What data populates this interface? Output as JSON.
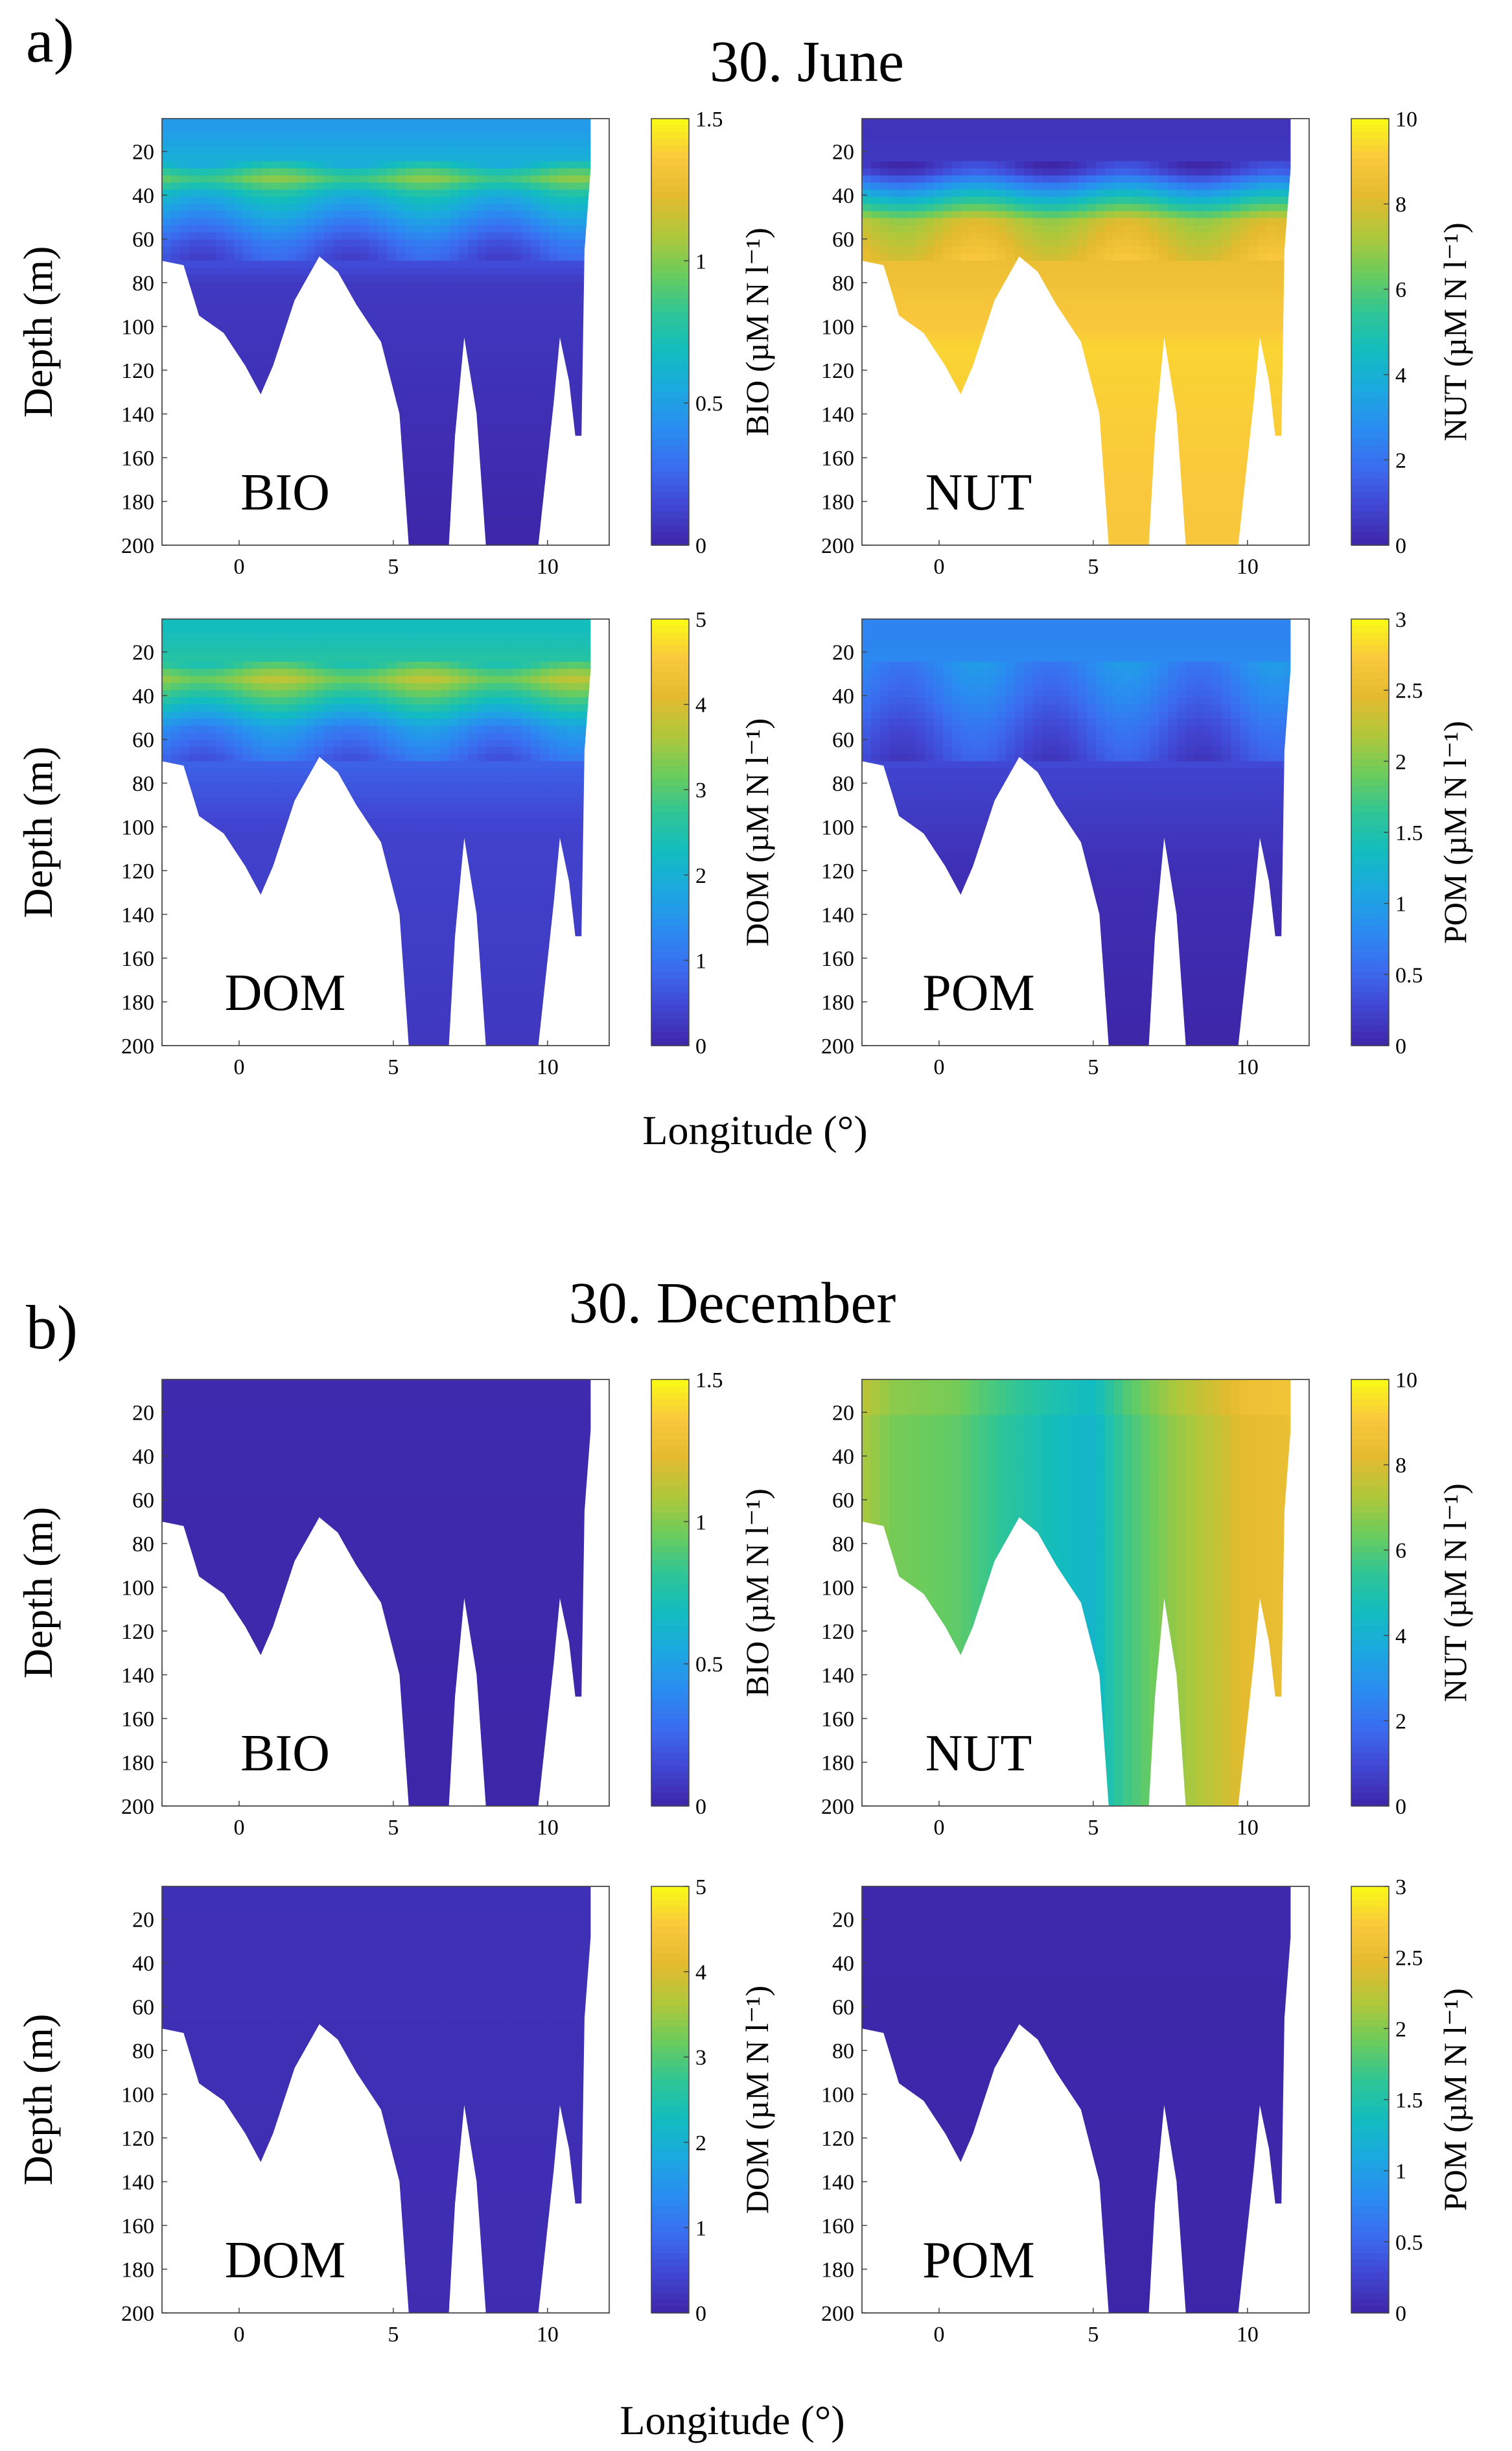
{
  "colors": {
    "parula": [
      "#3e26a8",
      "#4146d2",
      "#3b6cf0",
      "#2a8cf0",
      "#1ca8e0",
      "#12bcbf",
      "#30c596",
      "#6ccc5c",
      "#b1c73a",
      "#e4ba2f",
      "#fac83c",
      "#f9fb15"
    ],
    "axis": "#444444",
    "background": "#ffffff"
  },
  "chart_data": [
    {
      "type": "heatmap",
      "section_label": "a)",
      "title": "30. June",
      "xlabel": "Longitude (°)",
      "panels": [
        {
          "id": "june-bio",
          "label": "BIO",
          "ylabel": "Depth (m)",
          "colorbar_label": "BIO (µM N l⁻¹)",
          "clim": [
            0,
            1.5
          ],
          "cb_ticks": [
            "0",
            "0.5",
            "1",
            "1.5"
          ],
          "cb_tick_values": [
            0,
            0.5,
            1,
            1.5
          ],
          "xlim": [
            -2.5,
            12
          ],
          "ylim": [
            200,
            5
          ],
          "xticks": [
            "0",
            "5",
            "10"
          ],
          "xtick_values": [
            0,
            5,
            10
          ],
          "yticks": [
            "20",
            "40",
            "60",
            "80",
            "100",
            "120",
            "140",
            "160",
            "180",
            "200"
          ],
          "ytick_values": [
            20,
            40,
            60,
            80,
            100,
            120,
            140,
            160,
            180,
            200
          ],
          "depth_profile": [
            {
              "depth": 10,
              "value": 0.48
            },
            {
              "depth": 25,
              "value": 0.6
            },
            {
              "depth": 32,
              "value": 0.95
            },
            {
              "depth": 40,
              "value": 0.65
            },
            {
              "depth": 52,
              "value": 0.42
            },
            {
              "depth": 62,
              "value": 0.25
            },
            {
              "depth": 80,
              "value": 0.08
            },
            {
              "depth": 200,
              "value": 0.0
            }
          ]
        },
        {
          "id": "june-nut",
          "label": "NUT",
          "ylabel": "",
          "colorbar_label": "NUT (µM N l⁻¹)",
          "clim": [
            0,
            10
          ],
          "cb_ticks": [
            "0",
            "2",
            "4",
            "6",
            "8",
            "10"
          ],
          "cb_tick_values": [
            0,
            2,
            4,
            6,
            8,
            10
          ],
          "xlim": [
            -2.5,
            12
          ],
          "ylim": [
            200,
            5
          ],
          "xticks": [
            "0",
            "5",
            "10"
          ],
          "xtick_values": [
            0,
            5,
            10
          ],
          "yticks": [
            "20",
            "40",
            "60",
            "80",
            "100",
            "120",
            "140",
            "160",
            "180",
            "200"
          ],
          "ytick_values": [
            20,
            40,
            60,
            80,
            100,
            120,
            140,
            160,
            180,
            200
          ],
          "depth_profile": [
            {
              "depth": 10,
              "value": 0.4
            },
            {
              "depth": 28,
              "value": 0.6
            },
            {
              "depth": 38,
              "value": 3.5
            },
            {
              "depth": 52,
              "value": 7.5
            },
            {
              "depth": 70,
              "value": 8.5
            },
            {
              "depth": 110,
              "value": 9.3
            },
            {
              "depth": 200,
              "value": 9.0
            }
          ]
        },
        {
          "id": "june-dom",
          "label": "DOM",
          "ylabel": "Depth (m)",
          "colorbar_label": "DOM (µM N l⁻¹)",
          "clim": [
            0,
            5
          ],
          "cb_ticks": [
            "0",
            "1",
            "2",
            "3",
            "4",
            "5"
          ],
          "cb_tick_values": [
            0,
            1,
            2,
            3,
            4,
            5
          ],
          "xlim": [
            -2.5,
            12
          ],
          "ylim": [
            200,
            5
          ],
          "xticks": [
            "0",
            "5",
            "10"
          ],
          "xtick_values": [
            0,
            5,
            10
          ],
          "yticks": [
            "20",
            "40",
            "60",
            "80",
            "100",
            "120",
            "140",
            "160",
            "180",
            "200"
          ],
          "ytick_values": [
            20,
            40,
            60,
            80,
            100,
            120,
            140,
            160,
            180,
            200
          ],
          "depth_profile": [
            {
              "depth": 10,
              "value": 2.3
            },
            {
              "depth": 25,
              "value": 2.6
            },
            {
              "depth": 32,
              "value": 3.5
            },
            {
              "depth": 42,
              "value": 2.6
            },
            {
              "depth": 55,
              "value": 1.4
            },
            {
              "depth": 70,
              "value": 0.8
            },
            {
              "depth": 100,
              "value": 0.4
            },
            {
              "depth": 200,
              "value": 0.25
            }
          ]
        },
        {
          "id": "june-pom",
          "label": "POM",
          "ylabel": "",
          "colorbar_label": "POM (µM N l⁻¹)",
          "clim": [
            0,
            3
          ],
          "cb_ticks": [
            "0",
            "0.5",
            "1",
            "1.5",
            "2",
            "2.5",
            "3"
          ],
          "cb_tick_values": [
            0,
            0.5,
            1,
            1.5,
            2,
            2.5,
            3
          ],
          "xlim": [
            -2.5,
            12
          ],
          "ylim": [
            200,
            5
          ],
          "xticks": [
            "0",
            "5",
            "10"
          ],
          "xtick_values": [
            0,
            5,
            10
          ],
          "yticks": [
            "20",
            "40",
            "60",
            "80",
            "100",
            "120",
            "140",
            "160",
            "180",
            "200"
          ],
          "ytick_values": [
            20,
            40,
            60,
            80,
            100,
            120,
            140,
            160,
            180,
            200
          ],
          "depth_profile": [
            {
              "depth": 10,
              "value": 0.75
            },
            {
              "depth": 25,
              "value": 0.8
            },
            {
              "depth": 40,
              "value": 0.65
            },
            {
              "depth": 55,
              "value": 0.45
            },
            {
              "depth": 75,
              "value": 0.25
            },
            {
              "depth": 120,
              "value": 0.08
            },
            {
              "depth": 200,
              "value": 0.0
            }
          ]
        }
      ]
    },
    {
      "type": "heatmap",
      "section_label": "b)",
      "title": "30. December",
      "xlabel": "Longitude (°)",
      "panels": [
        {
          "id": "dec-bio",
          "label": "BIO",
          "ylabel": "Depth (m)",
          "colorbar_label": "BIO (µM N l⁻¹)",
          "clim": [
            0,
            1.5
          ],
          "cb_ticks": [
            "0",
            "0.5",
            "1",
            "1.5"
          ],
          "cb_tick_values": [
            0,
            0.5,
            1,
            1.5
          ],
          "xlim": [
            -2.5,
            12
          ],
          "ylim": [
            200,
            5
          ],
          "xticks": [
            "0",
            "5",
            "10"
          ],
          "xtick_values": [
            0,
            5,
            10
          ],
          "yticks": [
            "20",
            "40",
            "60",
            "80",
            "100",
            "120",
            "140",
            "160",
            "180",
            "200"
          ],
          "ytick_values": [
            20,
            40,
            60,
            80,
            100,
            120,
            140,
            160,
            180,
            200
          ],
          "depth_profile": [
            {
              "depth": 10,
              "value": 0.02
            },
            {
              "depth": 200,
              "value": 0.0
            }
          ]
        },
        {
          "id": "dec-nut",
          "label": "NUT",
          "ylabel": "",
          "colorbar_label": "NUT (µM N l⁻¹)",
          "clim": [
            0,
            10
          ],
          "cb_ticks": [
            "0",
            "2",
            "4",
            "6",
            "8",
            "10"
          ],
          "cb_tick_values": [
            0,
            2,
            4,
            6,
            8,
            10
          ],
          "xlim": [
            -2.5,
            12
          ],
          "ylim": [
            200,
            5
          ],
          "xticks": [
            "0",
            "5",
            "10"
          ],
          "xtick_values": [
            0,
            5,
            10
          ],
          "yticks": [
            "20",
            "40",
            "60",
            "80",
            "100",
            "120",
            "140",
            "160",
            "180",
            "200"
          ],
          "ytick_values": [
            20,
            40,
            60,
            80,
            100,
            120,
            140,
            160,
            180,
            200
          ],
          "longitude_profile": [
            {
              "lon": -2.5,
              "value": 7.2
            },
            {
              "lon": -1.5,
              "value": 6.5
            },
            {
              "lon": 0.5,
              "value": 6.2
            },
            {
              "lon": 2.0,
              "value": 5.4
            },
            {
              "lon": 3.5,
              "value": 4.7
            },
            {
              "lon": 5.0,
              "value": 4.2
            },
            {
              "lon": 6.0,
              "value": 5.6
            },
            {
              "lon": 7.5,
              "value": 6.8
            },
            {
              "lon": 9.0,
              "value": 7.6
            },
            {
              "lon": 10.0,
              "value": 8.3
            },
            {
              "lon": 11.5,
              "value": 8.5
            }
          ]
        },
        {
          "id": "dec-dom",
          "label": "DOM",
          "ylabel": "Depth (m)",
          "colorbar_label": "DOM (µM N l⁻¹)",
          "clim": [
            0,
            5
          ],
          "cb_ticks": [
            "0",
            "1",
            "2",
            "3",
            "4",
            "5"
          ],
          "cb_tick_values": [
            0,
            1,
            2,
            3,
            4,
            5
          ],
          "xlim": [
            -2.5,
            12
          ],
          "ylim": [
            200,
            5
          ],
          "xticks": [
            "0",
            "5",
            "10"
          ],
          "xtick_values": [
            0,
            5,
            10
          ],
          "yticks": [
            "20",
            "40",
            "60",
            "80",
            "100",
            "120",
            "140",
            "160",
            "180",
            "200"
          ],
          "ytick_values": [
            20,
            40,
            60,
            80,
            100,
            120,
            140,
            160,
            180,
            200
          ],
          "depth_profile": [
            {
              "depth": 10,
              "value": 0.15
            },
            {
              "depth": 200,
              "value": 0.1
            }
          ]
        },
        {
          "id": "dec-pom",
          "label": "POM",
          "ylabel": "",
          "colorbar_label": "POM (µM N l⁻¹)",
          "clim": [
            0,
            3
          ],
          "cb_ticks": [
            "0",
            "0.5",
            "1",
            "1.5",
            "2",
            "2.5",
            "3"
          ],
          "cb_tick_values": [
            0,
            0.5,
            1,
            1.5,
            2,
            2.5,
            3
          ],
          "xlim": [
            -2.5,
            12
          ],
          "ylim": [
            200,
            5
          ],
          "xticks": [
            "0",
            "5",
            "10"
          ],
          "xtick_values": [
            0,
            5,
            10
          ],
          "yticks": [
            "20",
            "40",
            "60",
            "80",
            "100",
            "120",
            "140",
            "160",
            "180",
            "200"
          ],
          "ytick_values": [
            20,
            40,
            60,
            80,
            100,
            120,
            140,
            160,
            180,
            200
          ],
          "depth_profile": [
            {
              "depth": 10,
              "value": 0.02
            },
            {
              "depth": 200,
              "value": 0.0
            }
          ]
        }
      ]
    }
  ],
  "bathymetry": [
    {
      "lon": -2.5,
      "depth": 70
    },
    {
      "lon": -1.8,
      "depth": 72
    },
    {
      "lon": -1.3,
      "depth": 95
    },
    {
      "lon": -0.5,
      "depth": 103
    },
    {
      "lon": 0.2,
      "depth": 118
    },
    {
      "lon": 0.7,
      "depth": 131
    },
    {
      "lon": 1.1,
      "depth": 118
    },
    {
      "lon": 1.8,
      "depth": 88
    },
    {
      "lon": 2.6,
      "depth": 68
    },
    {
      "lon": 3.2,
      "depth": 75
    },
    {
      "lon": 3.8,
      "depth": 90
    },
    {
      "lon": 4.6,
      "depth": 107
    },
    {
      "lon": 5.2,
      "depth": 140
    },
    {
      "lon": 5.5,
      "depth": 200
    },
    {
      "lon": 6.8,
      "depth": 200
    },
    {
      "lon": 7.0,
      "depth": 150
    },
    {
      "lon": 7.3,
      "depth": 105
    },
    {
      "lon": 7.7,
      "depth": 140
    },
    {
      "lon": 8.0,
      "depth": 200
    },
    {
      "lon": 9.7,
      "depth": 200
    },
    {
      "lon": 10.2,
      "depth": 135
    },
    {
      "lon": 10.4,
      "depth": 105
    },
    {
      "lon": 10.7,
      "depth": 125
    },
    {
      "lon": 10.9,
      "depth": 150
    },
    {
      "lon": 11.1,
      "depth": 150
    },
    {
      "lon": 11.2,
      "depth": 65
    },
    {
      "lon": 11.4,
      "depth": 28
    },
    {
      "lon": 11.4,
      "depth": 5
    }
  ]
}
